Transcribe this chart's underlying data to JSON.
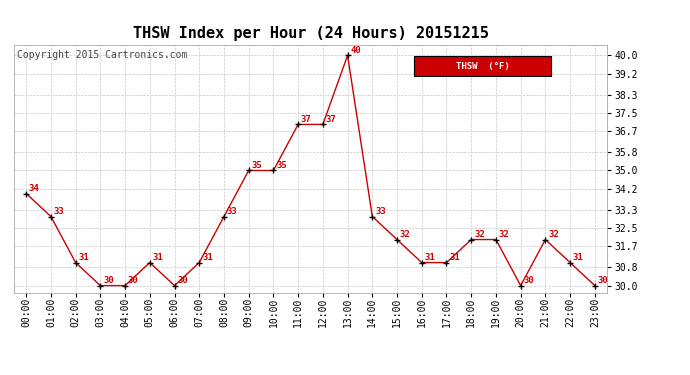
{
  "title": "THSW Index per Hour (24 Hours) 20151215",
  "copyright": "Copyright 2015 Cartronics.com",
  "hours": [
    "00:00",
    "01:00",
    "02:00",
    "03:00",
    "04:00",
    "05:00",
    "06:00",
    "07:00",
    "08:00",
    "09:00",
    "10:00",
    "11:00",
    "12:00",
    "13:00",
    "14:00",
    "15:00",
    "16:00",
    "17:00",
    "18:00",
    "19:00",
    "20:00",
    "21:00",
    "22:00",
    "23:00"
  ],
  "values": [
    34,
    33,
    31,
    30,
    30,
    31,
    30,
    31,
    33,
    35,
    35,
    37,
    37,
    40,
    33,
    32,
    31,
    31,
    32,
    32,
    30,
    32,
    31,
    30
  ],
  "line_color": "#cc0000",
  "marker_color": "#000000",
  "background_color": "#ffffff",
  "grid_color": "#c8c8c8",
  "ylim_min": 29.7,
  "ylim_max": 40.45,
  "yticks": [
    30.0,
    30.8,
    31.7,
    32.5,
    33.3,
    34.2,
    35.0,
    35.8,
    36.7,
    37.5,
    38.3,
    39.2,
    40.0
  ],
  "legend_label": "THSW  (°F)",
  "legend_bg": "#cc0000",
  "legend_text_color": "#ffffff",
  "title_fontsize": 11,
  "axis_label_fontsize": 7,
  "value_label_fontsize": 6.5,
  "copyright_fontsize": 7
}
